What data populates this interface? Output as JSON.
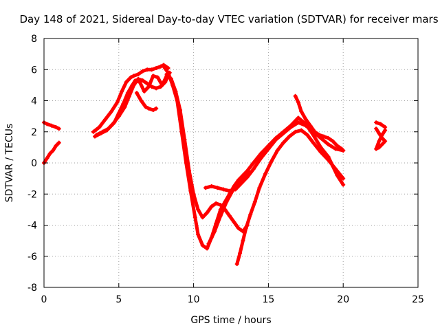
{
  "chart_data": {
    "type": "scatter",
    "title": "Day 148 of 2021, Sidereal Day-to-day VTEC variation (SDTVAR) for receiver mars",
    "xlabel": "GPS time / hours",
    "ylabel": "SDTVAR / TECUs",
    "xlim": [
      0,
      25
    ],
    "ylim": [
      -8,
      8
    ],
    "x_ticks": [
      "0",
      "5",
      "10",
      "15",
      "20",
      "25"
    ],
    "y_ticks": [
      "-8",
      "-6",
      "-4",
      "-2",
      "0",
      "2",
      "4",
      "6",
      "8"
    ],
    "grid": true,
    "legend": "none",
    "marker_color": "#ff0000",
    "series": [
      {
        "x": [
          0.0,
          0.2,
          0.5,
          0.8,
          1.0
        ],
        "y": [
          2.6,
          2.5,
          2.4,
          2.3,
          2.2
        ]
      },
      {
        "x": [
          0.0,
          0.2,
          0.4,
          0.6,
          0.8,
          1.0
        ],
        "y": [
          0.0,
          0.3,
          0.6,
          0.8,
          1.1,
          1.3
        ]
      },
      {
        "x": [
          3.3,
          3.7,
          4.1,
          4.5,
          4.9,
          5.2,
          5.5,
          5.8,
          6.0,
          6.3,
          6.6,
          6.9,
          7.2,
          7.5,
          7.8,
          8.0,
          8.3
        ],
        "y": [
          2.0,
          2.3,
          2.8,
          3.3,
          3.9,
          4.6,
          5.2,
          5.5,
          5.6,
          5.7,
          5.9,
          6.0,
          6.0,
          6.1,
          6.2,
          6.3,
          6.1
        ]
      },
      {
        "x": [
          3.5,
          3.9,
          4.3,
          4.7,
          5.0,
          5.3,
          5.6,
          5.9,
          6.1,
          6.4,
          6.7,
          7.0,
          7.3,
          7.6,
          7.9,
          8.2
        ],
        "y": [
          1.8,
          2.0,
          2.2,
          2.6,
          3.2,
          3.8,
          4.5,
          5.0,
          5.3,
          5.2,
          4.6,
          4.9,
          5.6,
          5.5,
          5.0,
          5.6
        ]
      },
      {
        "x": [
          3.4,
          3.8,
          4.2,
          4.6,
          5.0,
          5.4,
          5.7,
          6.0,
          6.3,
          6.6,
          6.9,
          7.2,
          7.5,
          7.8,
          8.1,
          8.4
        ],
        "y": [
          1.7,
          1.9,
          2.1,
          2.5,
          3.0,
          3.6,
          4.3,
          5.0,
          5.4,
          5.3,
          5.1,
          4.9,
          4.8,
          4.9,
          5.2,
          5.8
        ]
      },
      {
        "x": [
          6.2,
          6.5,
          6.8,
          7.0,
          7.3,
          7.5
        ],
        "y": [
          4.5,
          4.0,
          3.6,
          3.5,
          3.4,
          3.5
        ]
      },
      {
        "x": [
          8.0,
          8.3,
          8.6,
          8.9,
          9.2,
          9.5,
          9.8,
          10.1,
          10.3,
          10.6,
          10.9,
          11.2,
          11.5,
          11.8,
          12.1,
          12.4,
          12.7,
          13.0,
          13.3,
          13.6,
          14.0,
          14.5,
          15.0,
          15.5,
          16.0,
          16.5,
          17.0,
          17.5,
          18.0,
          18.5,
          19.0,
          19.3,
          19.6,
          20.0
        ],
        "y": [
          6.2,
          5.8,
          5.0,
          4.0,
          2.0,
          0.0,
          -1.8,
          -3.5,
          -4.6,
          -5.3,
          -5.5,
          -4.8,
          -3.9,
          -3.0,
          -2.5,
          -2.0,
          -1.5,
          -1.1,
          -0.8,
          -0.5,
          0.0,
          0.6,
          1.1,
          1.6,
          2.0,
          2.4,
          2.9,
          2.5,
          1.8,
          1.0,
          0.4,
          -0.2,
          -0.8,
          -1.4
        ]
      },
      {
        "x": [
          8.2,
          8.5,
          8.8,
          9.1,
          9.4,
          9.7,
          10.0,
          10.3,
          10.6,
          10.9,
          11.2,
          11.5,
          11.8,
          12.1,
          12.4,
          12.7,
          13.0,
          13.3,
          13.6
        ],
        "y": [
          5.7,
          5.4,
          4.6,
          3.4,
          1.5,
          -0.5,
          -2.0,
          -3.0,
          -3.5,
          -3.2,
          -2.8,
          -2.6,
          -2.7,
          -3.0,
          -3.4,
          -3.8,
          -4.2,
          -4.4,
          -4.0
        ]
      },
      {
        "x": [
          10.8,
          11.2,
          11.6,
          12.0,
          12.4,
          12.8,
          13.2,
          13.6,
          14.0,
          14.5,
          15.0,
          15.5,
          16.0,
          16.5,
          17.0,
          17.5,
          18.0,
          18.5,
          19.0,
          19.5,
          20.0
        ],
        "y": [
          -1.6,
          -1.5,
          -1.6,
          -1.7,
          -1.8,
          -1.7,
          -1.3,
          -0.9,
          -0.4,
          0.3,
          0.9,
          1.5,
          1.9,
          2.3,
          2.6,
          2.4,
          2.0,
          1.6,
          1.2,
          0.9,
          0.8
        ]
      },
      {
        "x": [
          11.0,
          11.4,
          11.8,
          12.2,
          12.6,
          13.0,
          13.4,
          13.8
        ],
        "y": [
          -5.2,
          -4.4,
          -3.4,
          -2.5,
          -1.8,
          -1.2,
          -0.8,
          -0.6
        ]
      },
      {
        "x": [
          12.9,
          13.1,
          13.3,
          13.5,
          13.8,
          14.1,
          14.4,
          14.8,
          15.2,
          15.6,
          16.0,
          16.4,
          16.8,
          17.2,
          17.6,
          18.0,
          18.5,
          19.0,
          19.5,
          20.0
        ],
        "y": [
          -6.5,
          -5.8,
          -5.0,
          -4.2,
          -3.3,
          -2.5,
          -1.6,
          -0.7,
          0.1,
          0.8,
          1.3,
          1.7,
          2.0,
          2.1,
          1.8,
          1.3,
          0.7,
          0.2,
          -0.4,
          -1.0
        ]
      },
      {
        "x": [
          16.8,
          17.0,
          17.2,
          17.5,
          17.8,
          18.1,
          18.4,
          18.7,
          19.0,
          19.3,
          19.6,
          19.9,
          20.0
        ],
        "y": [
          4.3,
          3.9,
          3.3,
          2.8,
          2.4,
          2.0,
          1.8,
          1.7,
          1.6,
          1.4,
          1.1,
          0.9,
          0.8
        ]
      },
      {
        "x": [
          22.2,
          22.5,
          22.8
        ],
        "y": [
          2.6,
          2.5,
          2.3
        ]
      },
      {
        "x": [
          22.2,
          22.4,
          22.6,
          22.8,
          22.6,
          22.4,
          22.2,
          22.4,
          22.6,
          22.8
        ],
        "y": [
          2.2,
          1.9,
          1.6,
          1.4,
          1.2,
          1.0,
          0.9,
          1.4,
          1.8,
          2.1
        ]
      }
    ]
  }
}
